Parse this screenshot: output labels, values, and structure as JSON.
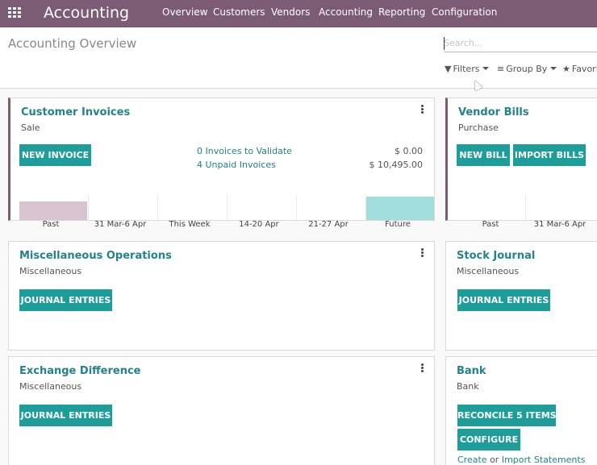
{
  "navbar": {
    "app_name": "Accounting",
    "menu": [
      "Overview",
      "Customers",
      "Vendors",
      "Accounting",
      "Reporting",
      "Configuration"
    ]
  },
  "control_panel": {
    "title": "Accounting Overview",
    "search_placeholder": "Search...",
    "filters_label": "Filters",
    "group_by_label": "Group By",
    "favorites_label": "Favorites"
  },
  "cards": {
    "customer_invoices": {
      "title": "Customer Invoices",
      "subtitle": "Sale",
      "button": "NEW INVOICE",
      "links": [
        {
          "label": "0 Invoices to Validate",
          "amount": "$ 0.00"
        },
        {
          "label": "4 Unpaid Invoices",
          "amount": "$ 10,495.00"
        }
      ],
      "chart_data": {
        "type": "bar",
        "categories": [
          "Past",
          "31 Mar-6 Apr",
          "This Week",
          "14-20 Apr",
          "21-27 Apr",
          "Future"
        ],
        "values": [
          1.0,
          0,
          0,
          0,
          0,
          1.25
        ],
        "bar_colors": [
          "#d8c4d1",
          "#d8d8d8",
          "#d8d8d8",
          "#d8d8d8",
          "#d8d8d8",
          "#a1ddda"
        ]
      }
    },
    "vendor_bills": {
      "title": "Vendor Bills",
      "subtitle": "Purchase",
      "buttons": [
        "NEW BILL",
        "IMPORT BILLS"
      ],
      "chart_data": {
        "type": "bar",
        "categories": [
          "Past",
          "31 Mar-6 Apr"
        ],
        "values": [
          0,
          0
        ]
      }
    },
    "misc_operations": {
      "title": "Miscellaneous Operations",
      "subtitle": "Miscellaneous",
      "button": "JOURNAL ENTRIES"
    },
    "stock_journal": {
      "title": "Stock Journal",
      "subtitle": "Miscellaneous",
      "button": "JOURNAL ENTRIES"
    },
    "exchange_difference": {
      "title": "Exchange Difference",
      "subtitle": "Miscellaneous",
      "button": "JOURNAL ENTRIES"
    },
    "bank": {
      "title": "Bank",
      "subtitle": "Bank",
      "buttons": [
        "RECONCILE 5 ITEMS",
        "CONFIGURE"
      ],
      "footer": {
        "create": "Create",
        "or": "or",
        "import": "Import Statements"
      }
    }
  },
  "colors": {
    "navbar": "#7c5b75",
    "primary_button": "#1d9e9a",
    "link": "#21838c"
  }
}
